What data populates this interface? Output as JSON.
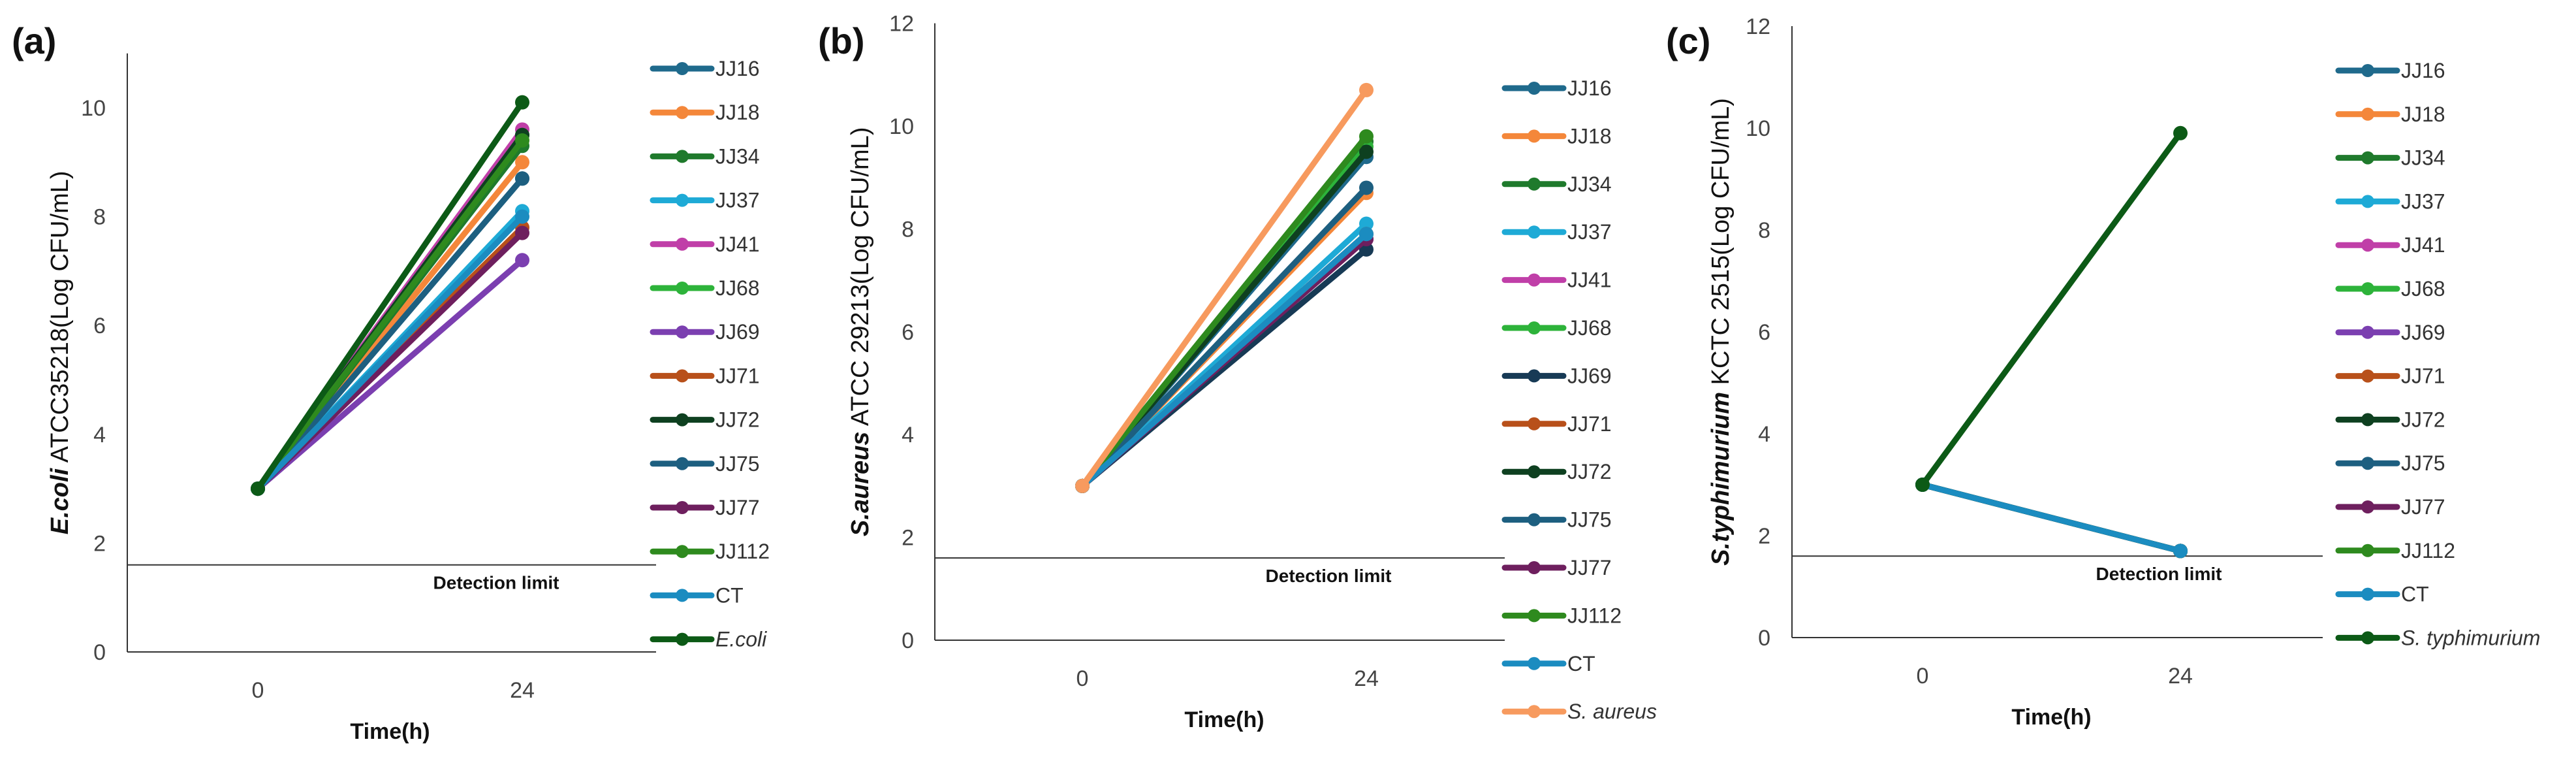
{
  "chart_data": [
    {
      "type": "line",
      "panel": "(a)",
      "ylabel_italic": "E.coli",
      "ylabel_rest": " ATCC35218(Log CFU/mL)",
      "xlabel": "Time(h)",
      "categories": [
        "0",
        "24"
      ],
      "ylim": [
        0,
        11
      ],
      "yticks": [
        0,
        2,
        4,
        6,
        8,
        10
      ],
      "detection_limit": 1.6,
      "detection_label": "Detection limit",
      "series": [
        {
          "name": "JJ16",
          "values": [
            3,
            8.7
          ],
          "color": "#1f6a8c"
        },
        {
          "name": "JJ18",
          "values": [
            3,
            9.0
          ],
          "color": "#f4873a"
        },
        {
          "name": "JJ34",
          "values": [
            3,
            9.3
          ],
          "color": "#1f7a2c"
        },
        {
          "name": "JJ37",
          "values": [
            3,
            8.1
          ],
          "color": "#1eaad6"
        },
        {
          "name": "JJ41",
          "values": [
            3,
            9.6
          ],
          "color": "#c03fa8"
        },
        {
          "name": "JJ68",
          "values": [
            3,
            9.5
          ],
          "color": "#2db33a"
        },
        {
          "name": "JJ69",
          "values": [
            3,
            7.2
          ],
          "color": "#7b3fb0"
        },
        {
          "name": "JJ71",
          "values": [
            3,
            7.8
          ],
          "color": "#b8501a"
        },
        {
          "name": "JJ72",
          "values": [
            3,
            9.5
          ],
          "color": "#0e4020"
        },
        {
          "name": "JJ75",
          "values": [
            3,
            8.7
          ],
          "color": "#1d5f80"
        },
        {
          "name": "JJ77",
          "values": [
            3,
            7.7
          ],
          "color": "#6e1f5e"
        },
        {
          "name": "JJ112",
          "values": [
            3,
            9.4
          ],
          "color": "#2e8a1e"
        },
        {
          "name": "CT",
          "values": [
            3,
            8.0
          ],
          "color": "#1b8cc0"
        },
        {
          "name": "E.coli",
          "values": [
            3,
            10.1
          ],
          "color": "#0c5a16",
          "italic": true
        }
      ]
    },
    {
      "type": "line",
      "panel": "(b)",
      "ylabel_italic": "S.aureus",
      "ylabel_rest": " ATCC 29213(Log CFU/mL)",
      "xlabel": "Time(h)",
      "categories": [
        "0",
        "24"
      ],
      "ylim": [
        0,
        12
      ],
      "yticks": [
        0,
        2,
        4,
        6,
        8,
        10,
        12
      ],
      "detection_limit": 1.6,
      "detection_label": "Detection limit",
      "series": [
        {
          "name": "JJ16",
          "values": [
            3,
            9.4
          ],
          "color": "#1f6a8c"
        },
        {
          "name": "JJ18",
          "values": [
            3,
            8.7
          ],
          "color": "#f4873a"
        },
        {
          "name": "JJ34",
          "values": [
            3,
            9.7
          ],
          "color": "#1f7a2c"
        },
        {
          "name": "JJ37",
          "values": [
            3,
            8.1
          ],
          "color": "#1eaad6"
        },
        {
          "name": "JJ41",
          "values": [
            3,
            7.8
          ],
          "color": "#c03fa8"
        },
        {
          "name": "JJ68",
          "values": [
            3,
            9.6
          ],
          "color": "#2db33a"
        },
        {
          "name": "JJ69",
          "values": [
            3,
            7.6
          ],
          "color": "#173a55"
        },
        {
          "name": "JJ71",
          "values": [
            3,
            7.9
          ],
          "color": "#b8501a"
        },
        {
          "name": "JJ72",
          "values": [
            3,
            9.5
          ],
          "color": "#0e4020"
        },
        {
          "name": "JJ75",
          "values": [
            3,
            8.8
          ],
          "color": "#1d5f80"
        },
        {
          "name": "JJ77",
          "values": [
            3,
            7.8
          ],
          "color": "#6e1f5e"
        },
        {
          "name": "JJ112",
          "values": [
            3,
            9.8
          ],
          "color": "#2e8a1e"
        },
        {
          "name": "CT",
          "values": [
            3,
            7.9
          ],
          "color": "#1b8cc0"
        },
        {
          "name": "S. aureus",
          "values": [
            3,
            10.7
          ],
          "color": "#f79a5e",
          "italic": true
        }
      ]
    },
    {
      "type": "line",
      "panel": "(c)",
      "ylabel_italic": "S.typhimurium",
      "ylabel_rest": " KCTC 2515(Log CFU/mL)",
      "xlabel": "Time(h)",
      "categories": [
        "0",
        "24"
      ],
      "ylim": [
        0,
        12
      ],
      "yticks": [
        0,
        2,
        4,
        6,
        8,
        10,
        12
      ],
      "detection_limit": 1.6,
      "detection_label": "Detection limit",
      "series": [
        {
          "name": "JJ16",
          "values": [
            3,
            1.7
          ],
          "color": "#1f6a8c"
        },
        {
          "name": "JJ18",
          "values": [
            3,
            1.7
          ],
          "color": "#f4873a"
        },
        {
          "name": "JJ34",
          "values": [
            3,
            1.7
          ],
          "color": "#1f7a2c"
        },
        {
          "name": "JJ37",
          "values": [
            3,
            1.7
          ],
          "color": "#1eaad6"
        },
        {
          "name": "JJ41",
          "values": [
            3,
            1.7
          ],
          "color": "#c03fa8"
        },
        {
          "name": "JJ68",
          "values": [
            3,
            1.7
          ],
          "color": "#2db33a"
        },
        {
          "name": "JJ69",
          "values": [
            3,
            1.7
          ],
          "color": "#7b3fb0"
        },
        {
          "name": "JJ71",
          "values": [
            3,
            1.7
          ],
          "color": "#b8501a"
        },
        {
          "name": "JJ72",
          "values": [
            3,
            1.7
          ],
          "color": "#0e4020"
        },
        {
          "name": "JJ75",
          "values": [
            3,
            1.7
          ],
          "color": "#1d5f80"
        },
        {
          "name": "JJ77",
          "values": [
            3,
            1.7
          ],
          "color": "#6e1f5e"
        },
        {
          "name": "JJ112",
          "values": [
            3,
            1.7
          ],
          "color": "#2e8a1e"
        },
        {
          "name": "CT",
          "values": [
            3,
            1.7
          ],
          "color": "#1b8cc0"
        },
        {
          "name": "S. typhimurium",
          "values": [
            3,
            9.9
          ],
          "color": "#0c5a16",
          "italic": true
        }
      ]
    }
  ]
}
